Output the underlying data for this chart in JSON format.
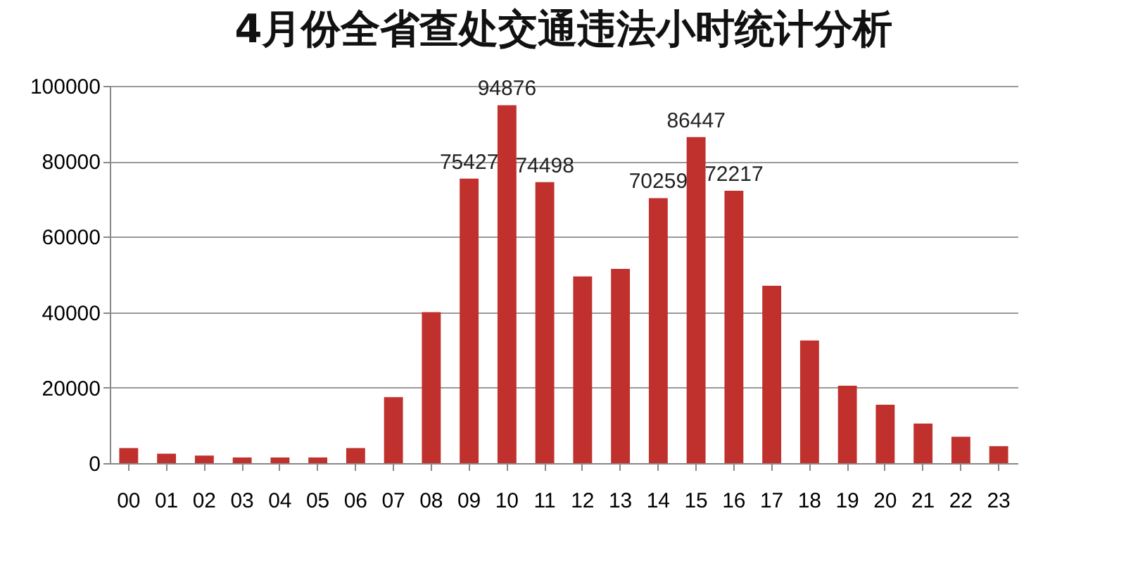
{
  "chart_data": {
    "type": "bar",
    "title": "4月份全省查处交通违法小时统计分析",
    "categories": [
      "00",
      "01",
      "02",
      "03",
      "04",
      "05",
      "06",
      "07",
      "08",
      "09",
      "10",
      "11",
      "12",
      "13",
      "14",
      "15",
      "16",
      "17",
      "18",
      "19",
      "20",
      "21",
      "22",
      "23"
    ],
    "values": [
      4000,
      2500,
      2000,
      1500,
      1500,
      1500,
      4000,
      17500,
      40000,
      75427,
      94876,
      74498,
      49500,
      51500,
      70259,
      86447,
      72217,
      47000,
      32500,
      20500,
      15500,
      10500,
      7000,
      4500
    ],
    "value_labels": [
      null,
      null,
      null,
      null,
      null,
      null,
      null,
      null,
      null,
      "75427",
      "94876",
      "74498",
      null,
      null,
      "70259",
      "86447",
      "72217",
      null,
      null,
      null,
      null,
      null,
      null,
      null
    ],
    "color": "#c0312e",
    "ylim": [
      0,
      100000
    ],
    "yticks": [
      0,
      20000,
      40000,
      60000,
      80000,
      100000
    ],
    "grid": "y"
  }
}
